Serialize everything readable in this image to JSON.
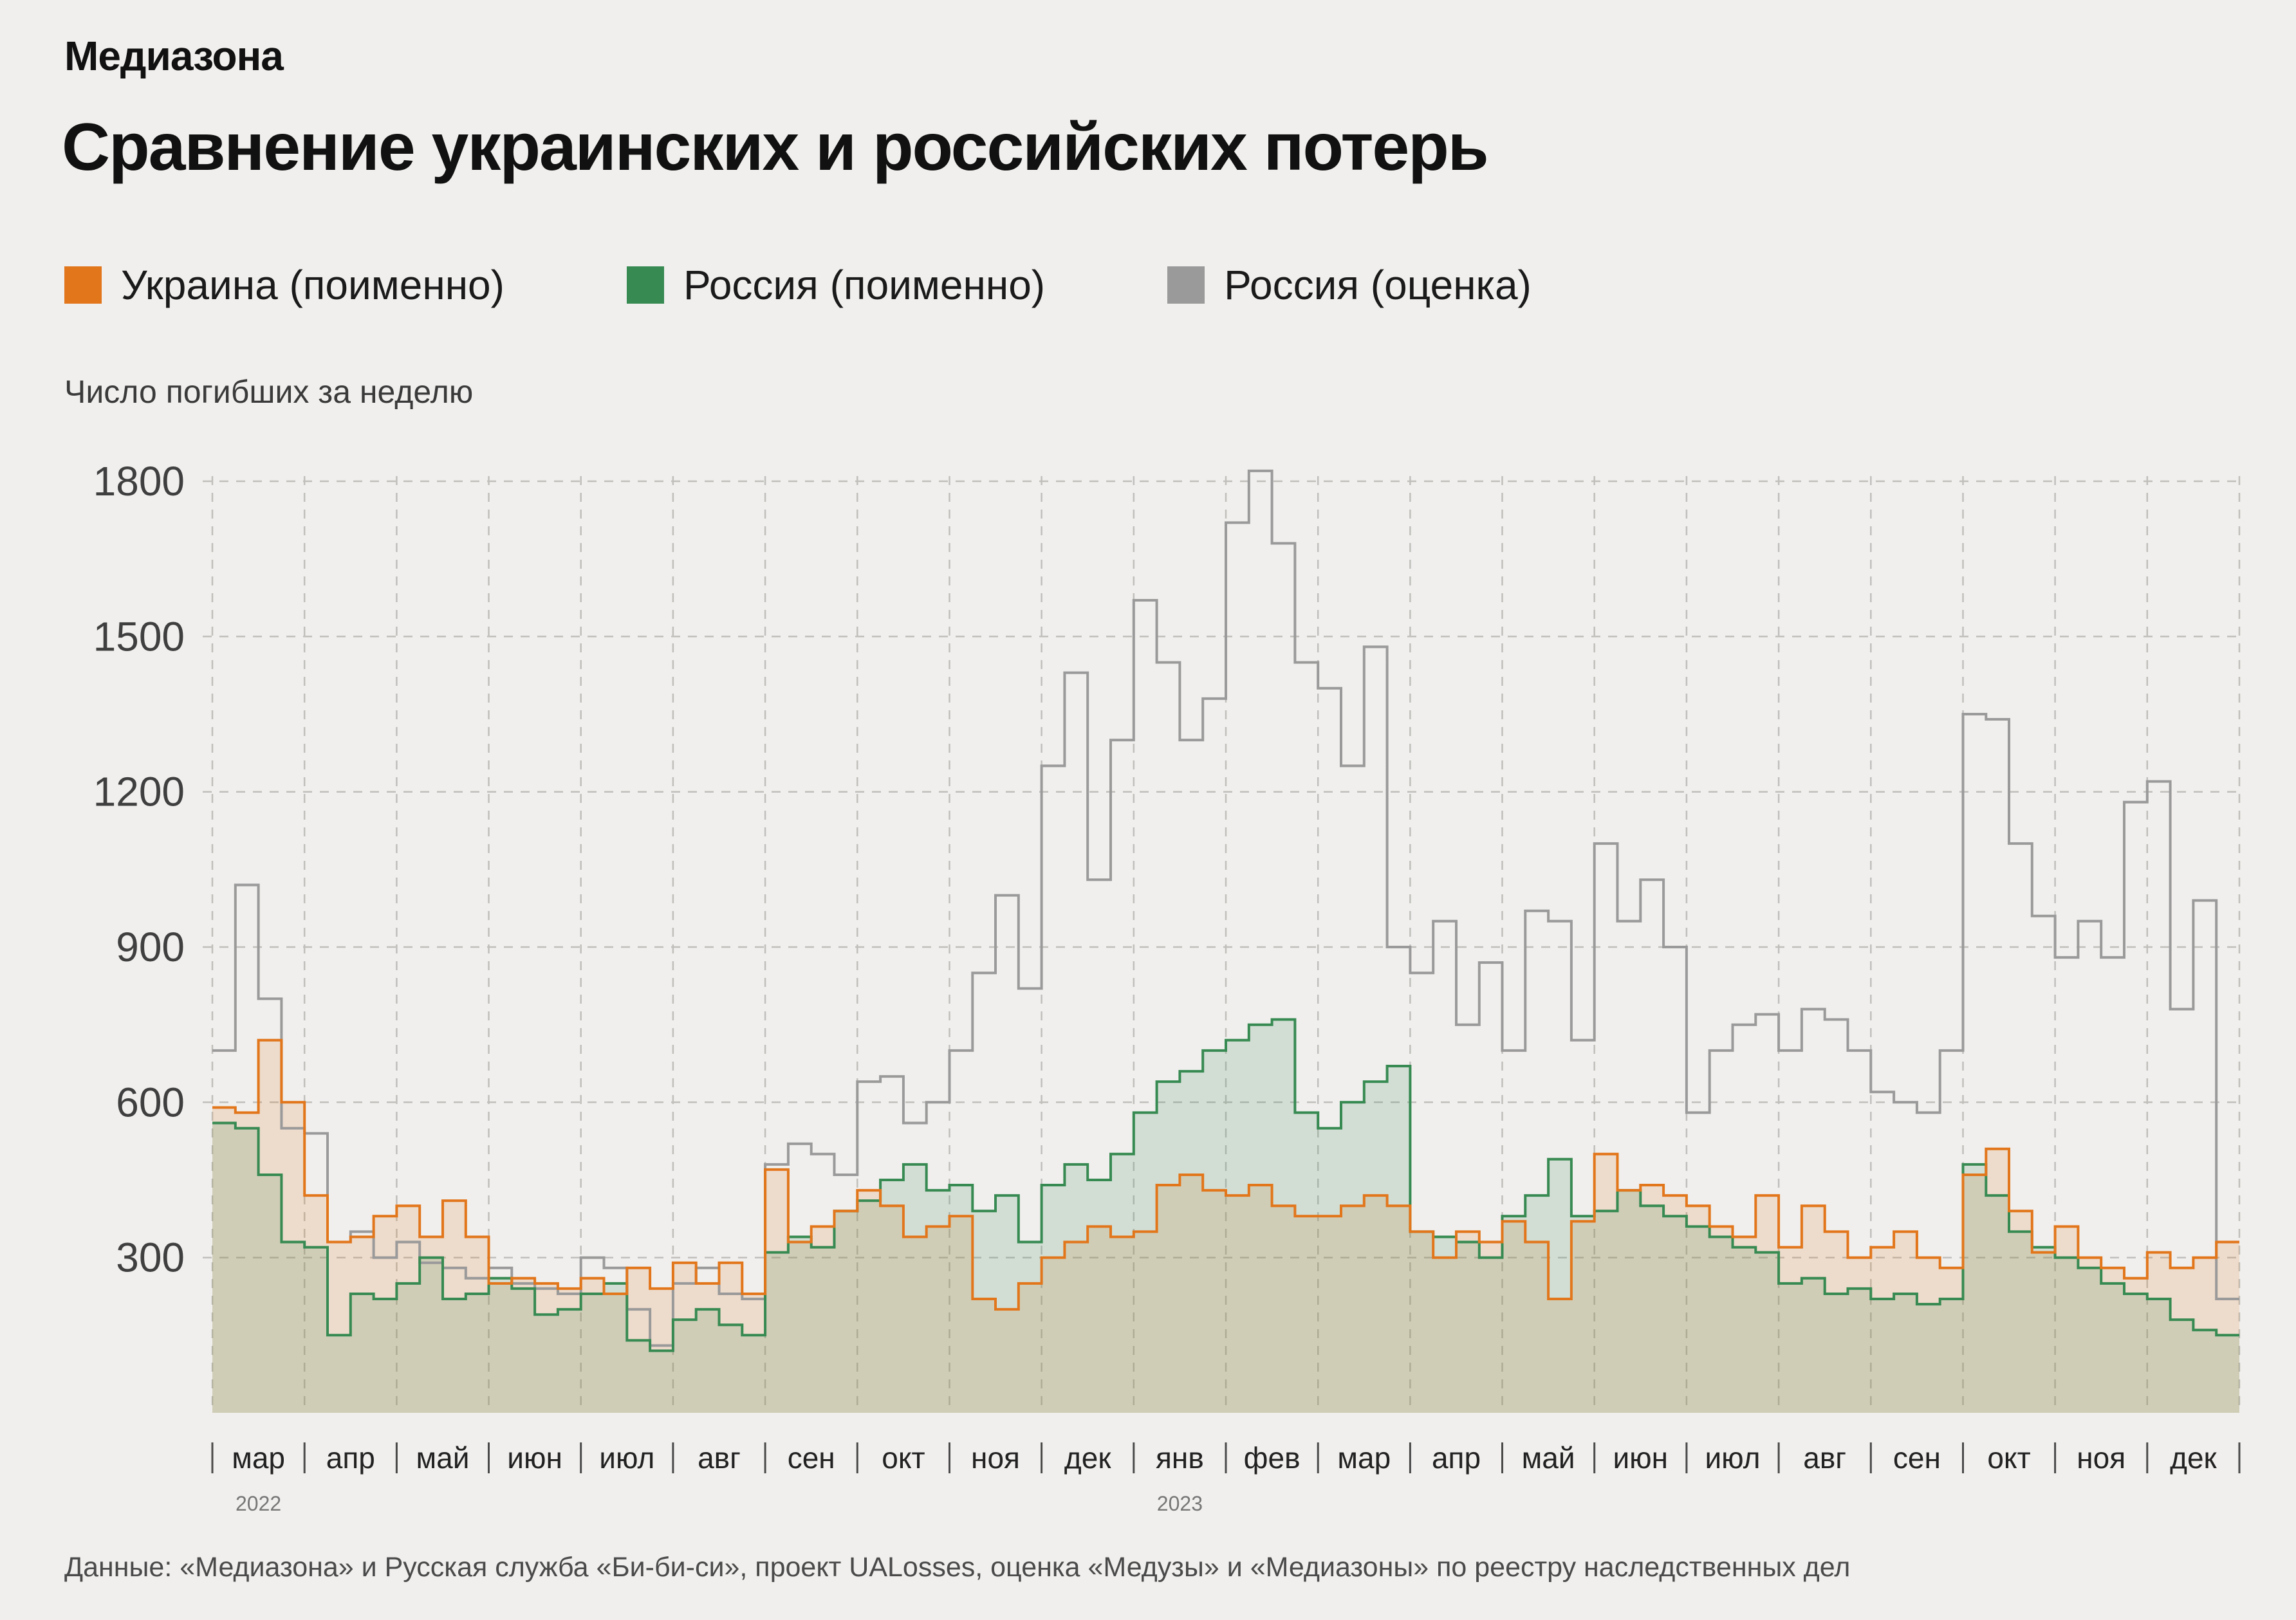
{
  "brand": "Медиазона",
  "title": "Сравнение украинских и российских потерь",
  "ylabel": "Число погибших за неделю",
  "footer": "Данные: «Медиазона» и Русская служба «Би-би-си», проект UALosses, оценка «Медузы» и «Медиазоны» по реестру наследственных дел",
  "legend": [
    {
      "label": "Украина (поименно)",
      "color": "#e2761b"
    },
    {
      "label": "Россия (поименно)",
      "color": "#378a52"
    },
    {
      "label": "Россия (оценка)",
      "color": "#9a9a9a"
    }
  ],
  "chart_data": {
    "type": "area",
    "title": "Сравнение украинских и российских потерь",
    "subtitle": "Число погибших за неделю",
    "y_ticks": [
      300,
      600,
      900,
      1200,
      1500,
      1800
    ],
    "ylim": [
      0,
      1900
    ],
    "grid": "dashed",
    "legend_position": "top",
    "weeks_per_month": 4,
    "months": [
      {
        "label": "мар",
        "year": "2022"
      },
      {
        "label": "апр"
      },
      {
        "label": "май"
      },
      {
        "label": "июн"
      },
      {
        "label": "июл"
      },
      {
        "label": "авг"
      },
      {
        "label": "сен"
      },
      {
        "label": "окт"
      },
      {
        "label": "ноя"
      },
      {
        "label": "дек"
      },
      {
        "label": "янв",
        "year": "2023"
      },
      {
        "label": "фев"
      },
      {
        "label": "мар"
      },
      {
        "label": "апр"
      },
      {
        "label": "май"
      },
      {
        "label": "июн"
      },
      {
        "label": "июл"
      },
      {
        "label": "авг"
      },
      {
        "label": "сен"
      },
      {
        "label": "окт"
      },
      {
        "label": "ноя"
      },
      {
        "label": "дек"
      }
    ],
    "series": [
      {
        "name": "Украина (поименно)",
        "color": "#e2761b",
        "fill": "rgba(226,118,27,0.16)",
        "values": [
          590,
          580,
          720,
          600,
          420,
          330,
          340,
          380,
          400,
          340,
          410,
          340,
          250,
          260,
          250,
          240,
          260,
          230,
          280,
          240,
          290,
          250,
          290,
          230,
          470,
          330,
          360,
          390,
          430,
          400,
          340,
          360,
          380,
          220,
          200,
          250,
          300,
          330,
          360,
          340,
          350,
          440,
          460,
          430,
          420,
          440,
          400,
          380,
          380,
          400,
          420,
          400,
          350,
          300,
          350,
          330,
          370,
          330,
          220,
          370,
          500,
          430,
          440,
          420,
          400,
          360,
          340,
          420,
          320,
          400,
          350,
          300,
          320,
          350,
          300,
          280,
          460,
          510,
          390,
          310,
          360,
          300,
          280,
          260,
          310,
          280,
          300,
          330
        ]
      },
      {
        "name": "Россия (поименно)",
        "color": "#378a52",
        "fill": "rgba(55,138,82,0.16)",
        "values": [
          560,
          550,
          460,
          330,
          320,
          150,
          230,
          220,
          250,
          300,
          220,
          230,
          260,
          240,
          190,
          200,
          230,
          250,
          140,
          120,
          180,
          200,
          170,
          150,
          310,
          340,
          320,
          390,
          410,
          450,
          480,
          430,
          440,
          390,
          420,
          330,
          440,
          480,
          450,
          500,
          580,
          640,
          660,
          700,
          720,
          750,
          760,
          580,
          550,
          600,
          640,
          670,
          350,
          340,
          330,
          300,
          380,
          420,
          490,
          380,
          390,
          430,
          400,
          380,
          360,
          340,
          320,
          310,
          250,
          260,
          230,
          240,
          220,
          230,
          210,
          220,
          480,
          420,
          350,
          320,
          300,
          280,
          250,
          230,
          220,
          180,
          160,
          150
        ]
      },
      {
        "name": "Россия (оценка)",
        "color": "#9a9a9a",
        "fill": "none",
        "values": [
          700,
          1020,
          800,
          550,
          540,
          330,
          350,
          300,
          330,
          290,
          280,
          260,
          280,
          250,
          240,
          230,
          300,
          280,
          200,
          130,
          250,
          280,
          230,
          220,
          480,
          520,
          500,
          460,
          640,
          650,
          560,
          600,
          700,
          850,
          1000,
          820,
          1250,
          1430,
          1030,
          1300,
          1570,
          1450,
          1300,
          1380,
          1720,
          1820,
          1680,
          1450,
          1400,
          1250,
          1480,
          900,
          850,
          950,
          750,
          870,
          700,
          970,
          950,
          720,
          1100,
          950,
          1030,
          900,
          580,
          700,
          750,
          770,
          700,
          780,
          760,
          700,
          620,
          600,
          580,
          700,
          1350,
          1340,
          1100,
          960,
          880,
          950,
          880,
          1180,
          1220,
          780,
          990,
          220
        ]
      }
    ]
  }
}
